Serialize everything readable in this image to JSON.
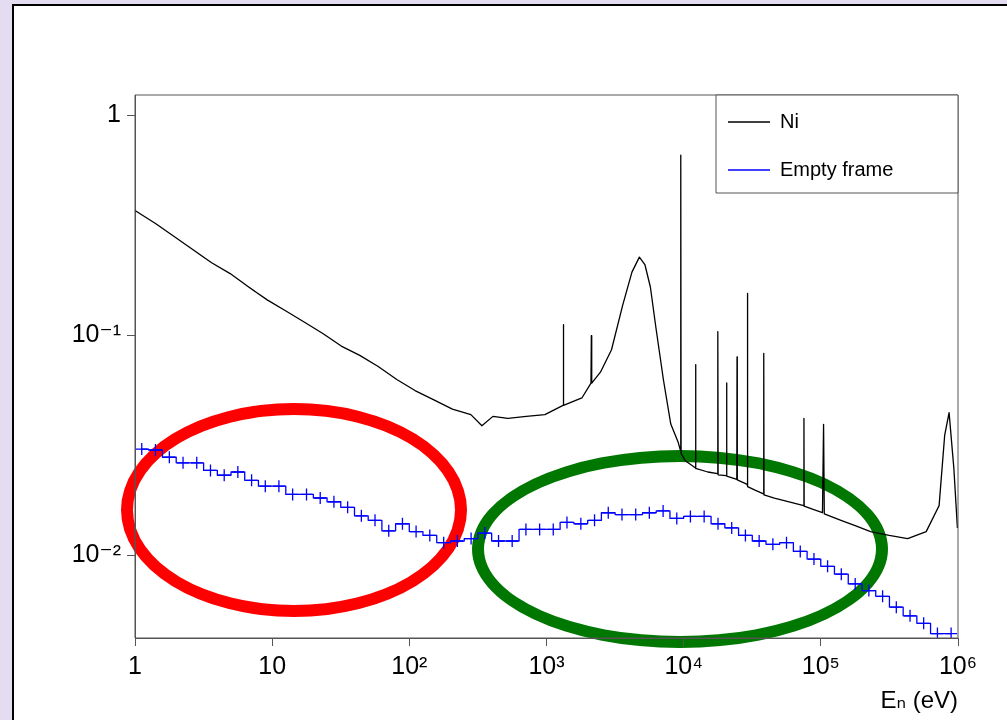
{
  "chart_data": {
    "type": "line",
    "xlabel": "Eₙ (eV)",
    "log": "xy",
    "xlim": [
      1,
      1000000
    ],
    "ylim": [
      0.0042,
      1.24
    ],
    "xticks": [
      1,
      10,
      {
        "value": 100,
        "label": "10²"
      },
      {
        "value": 1000,
        "label": "10³"
      },
      {
        "value": 10000,
        "label": "10⁴"
      },
      {
        "value": 100000,
        "label": "10⁵"
      },
      {
        "value": 1000000,
        "label": "10⁶"
      }
    ],
    "yticks": [
      {
        "value": 0.01,
        "label": "10⁻²"
      },
      {
        "value": 0.1,
        "label": "10⁻¹"
      },
      1
    ],
    "grid": false,
    "legend": "top right",
    "line_style": "solid",
    "series": [
      {
        "name": "Ni",
        "color": "#000000",
        "marker": "none",
        "x": [
          1,
          1.42,
          1.94,
          2.65,
          3.62,
          4.94,
          6.74,
          9.2,
          12.6,
          17.1,
          23.4,
          31.9,
          43.5,
          59.3,
          81,
          110,
          151,
          206,
          281,
          338,
          407,
          522,
          713,
          973,
          1320,
          1327,
          1334,
          1811,
          2110,
          2123,
          2136,
          2473,
          2978,
          3590,
          4197,
          4753,
          5215,
          5719,
          6281,
          7113,
          8054,
          9120,
          9470,
          9525,
          9580,
          10330,
          12150,
          12210,
          12280,
          15000,
          17650,
          17740,
          17830,
          20470,
          20560,
          20650,
          24400,
          24500,
          24600,
          29050,
          29170,
          29300,
          33440,
          38200,
          38360,
          38520,
          45810,
          58710,
          75000,
          75310,
          75600,
          102800,
          104700,
          106000,
          140300,
          179800,
          230600,
          314800,
          429500,
          586200,
          728100,
          800000,
          861000,
          933000,
          990000
        ],
        "values": [
          0.37,
          0.322,
          0.281,
          0.245,
          0.214,
          0.191,
          0.166,
          0.145,
          0.129,
          0.115,
          0.102,
          0.0894,
          0.0811,
          0.0722,
          0.063,
          0.0561,
          0.0509,
          0.0462,
          0.0436,
          0.0388,
          0.0428,
          0.0419,
          0.0428,
          0.0436,
          0.048,
          0.112,
          0.048,
          0.0519,
          0.0606,
          0.0996,
          0.0606,
          0.068,
          0.086,
          0.137,
          0.194,
          0.227,
          0.21,
          0.166,
          0.108,
          0.063,
          0.0395,
          0.0326,
          0.03,
          0.66,
          0.029,
          0.0268,
          0.025,
          0.0736,
          0.0248,
          0.0239,
          0.0235,
          0.104,
          0.0232,
          0.023,
          0.0607,
          0.0229,
          0.0221,
          0.0797,
          0.022,
          0.021,
          0.155,
          0.0205,
          0.0197,
          0.019,
          0.0827,
          0.0188,
          0.0182,
          0.0175,
          0.0168,
          0.0419,
          0.0167,
          0.0156,
          0.0394,
          0.0154,
          0.0144,
          0.0136,
          0.0128,
          0.0123,
          0.0119,
          0.0128,
          0.0168,
          0.0352,
          0.0445,
          0.0248,
          0.0133
        ]
      },
      {
        "name": "Empty frame",
        "color": "#0000ff",
        "type": "step",
        "marker": "cross",
        "x": [
          1.12,
          1.41,
          1.78,
          2.24,
          2.82,
          3.55,
          4.47,
          5.62,
          7.08,
          8.91,
          11.2,
          14.1,
          17.8,
          22.4,
          28.2,
          35.5,
          44.7,
          56.2,
          70.8,
          89.1,
          112,
          141,
          178,
          224,
          282,
          355,
          447,
          562,
          708,
          891,
          1120,
          1410,
          1780,
          2240,
          2820,
          3550,
          4470,
          5620,
          7080,
          8910,
          11200,
          14100,
          17800,
          22400,
          28200,
          35500,
          44700,
          56200,
          70800,
          89100,
          112000,
          141000,
          178000,
          224000,
          282000,
          355000,
          447000,
          562000,
          708000,
          891000
        ],
        "values": [
          0.0304,
          0.0301,
          0.0279,
          0.0263,
          0.0263,
          0.0243,
          0.0231,
          0.0239,
          0.0219,
          0.0206,
          0.0206,
          0.0189,
          0.0189,
          0.0182,
          0.0175,
          0.0165,
          0.0151,
          0.0144,
          0.0129,
          0.0139,
          0.0128,
          0.0123,
          0.0114,
          0.0116,
          0.0119,
          0.0126,
          0.0116,
          0.0116,
          0.0131,
          0.0131,
          0.0131,
          0.0141,
          0.0139,
          0.0144,
          0.0156,
          0.0153,
          0.0153,
          0.0156,
          0.0159,
          0.0147,
          0.015,
          0.015,
          0.0139,
          0.0133,
          0.0123,
          0.0116,
          0.0112,
          0.0114,
          0.0104,
          0.0096,
          0.0089,
          0.0082,
          0.0074,
          0.0069,
          0.0065,
          0.0058,
          0.0053,
          0.0049,
          0.0044,
          0.0044
        ]
      }
    ]
  }
}
